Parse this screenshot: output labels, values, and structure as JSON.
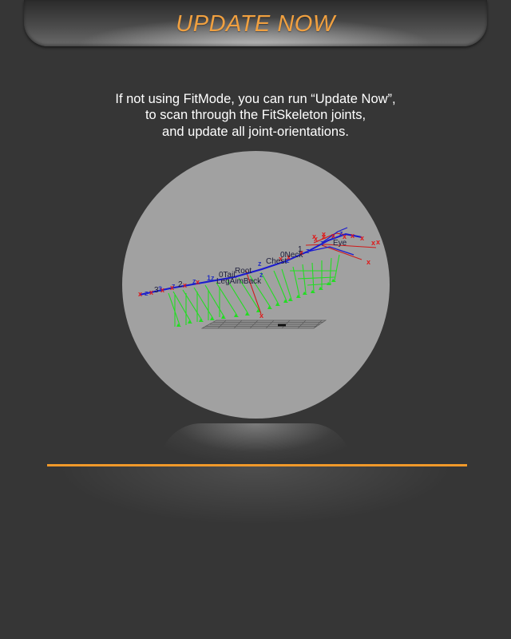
{
  "header": {
    "title": "UPDATE NOW"
  },
  "description": {
    "line1": "If not using FitMode, you can run “Update Now”,",
    "line2": "to scan through the FitSkeleton joints,",
    "line3": "and update all joint-orientations."
  },
  "viewport": {
    "joint_labels": [
      "Root",
      "0Tail",
      "LegAimBack",
      "Chest",
      "0Neck",
      "Eye",
      "1",
      "2",
      "3"
    ],
    "colors": {
      "bone": "#1a1ad0",
      "aim": "#22dd22",
      "marker": "#e01818"
    }
  },
  "colors": {
    "accent": "#f0a040",
    "divider": "#f0992a",
    "background": "#363636",
    "viewport": "#a1a1a1"
  }
}
